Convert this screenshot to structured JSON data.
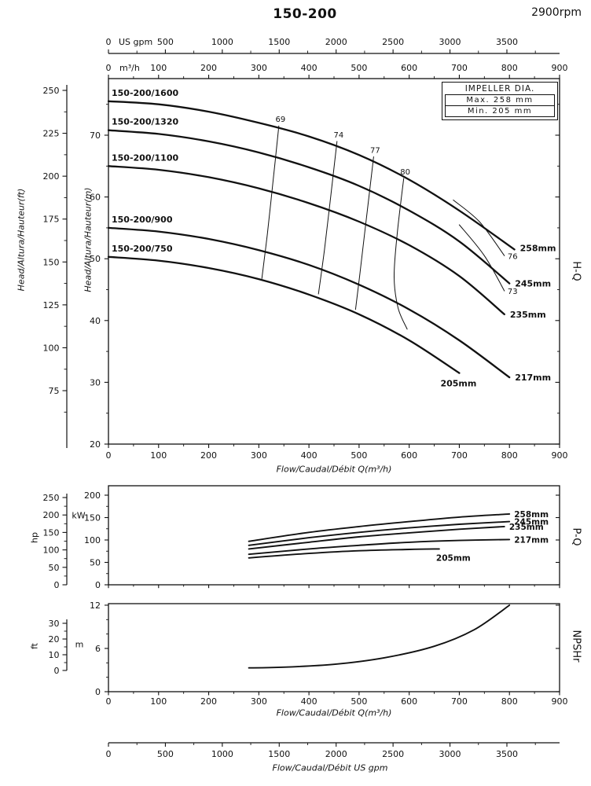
{
  "header": {
    "title": "150-200",
    "rpm": "2900rpm"
  },
  "impeller_box": {
    "title": "IMPELLER DIA.",
    "max": "Max.  258 mm",
    "min": "Min.  205 mm"
  },
  "side_labels": {
    "hq": "H-Q",
    "pq": "P-Q",
    "npshr": "NPSHr"
  },
  "axis_titles": {
    "head_ft": "Head/Altura/Hauteur(ft)",
    "head_m": "Head/Altura/Hauteur(m)",
    "flow_main": "Flow/Caudal/Débit Q(m³/h)",
    "flow_npsh": "Flow/Caudal/Débit Q(m³/h)",
    "flow_gpm": "Flow/Caudal/Débit  US gpm",
    "hp": "hp",
    "kw": "kW",
    "ft": "ft",
    "m": "m",
    "m3h_unit": "m³/h",
    "usgpm_unit": "US gpm"
  },
  "chart_data": [
    {
      "type": "line",
      "name": "H-Q",
      "title": "150-200 head vs flow",
      "xlabel": "Flow/Caudal/Débit Q(m³/h)",
      "ylabel": "Head/Altura/Hauteur(m)",
      "xlim": [
        0,
        900
      ],
      "ylim": [
        20,
        79
      ],
      "x_ticks": [
        0,
        100,
        200,
        300,
        400,
        500,
        600,
        700,
        800,
        900
      ],
      "x_minor_step": 50,
      "y_ticks_m": [
        20,
        30,
        40,
        50,
        60,
        70
      ],
      "y_minor_step_m": 5,
      "y_ticks_ft": [
        75,
        100,
        125,
        150,
        175,
        200,
        225,
        250
      ],
      "gpm_ticks": [
        0,
        500,
        1000,
        1500,
        2000,
        2500,
        3000,
        3500
      ],
      "gpm_minor_step": 250,
      "series": [
        {
          "model": "150-200/1600",
          "impeller": "258mm",
          "points": [
            [
              0,
              75.5
            ],
            [
              100,
              75
            ],
            [
              200,
              73.8
            ],
            [
              300,
              72
            ],
            [
              400,
              69.8
            ],
            [
              500,
              66.8
            ],
            [
              600,
              62.8
            ],
            [
              700,
              57.8
            ],
            [
              810,
              51.5
            ]
          ],
          "impeller_label_offset": [
            7,
            2
          ]
        },
        {
          "model": "150-200/1320",
          "impeller": "245mm",
          "points": [
            [
              0,
              70.8
            ],
            [
              100,
              70.2
            ],
            [
              200,
              69
            ],
            [
              300,
              67.2
            ],
            [
              400,
              64.8
            ],
            [
              500,
              61.8
            ],
            [
              600,
              57.8
            ],
            [
              700,
              52.8
            ],
            [
              800,
              46
            ]
          ]
        },
        {
          "model": "150-200/1100",
          "impeller": "235mm",
          "points": [
            [
              0,
              65
            ],
            [
              100,
              64.4
            ],
            [
              200,
              63.2
            ],
            [
              300,
              61.4
            ],
            [
              400,
              59
            ],
            [
              500,
              56
            ],
            [
              600,
              52.2
            ],
            [
              700,
              47.2
            ],
            [
              790,
              41
            ]
          ]
        },
        {
          "model": "150-200/900",
          "impeller": "217mm",
          "points": [
            [
              0,
              55
            ],
            [
              100,
              54.4
            ],
            [
              200,
              53.2
            ],
            [
              300,
              51.4
            ],
            [
              400,
              49
            ],
            [
              500,
              45.8
            ],
            [
              600,
              41.8
            ],
            [
              700,
              36.8
            ],
            [
              800,
              30.8
            ]
          ]
        },
        {
          "model": "150-200/750",
          "impeller": "205mm",
          "points": [
            [
              0,
              50.3
            ],
            [
              100,
              49.7
            ],
            [
              200,
              48.5
            ],
            [
              300,
              46.7
            ],
            [
              400,
              44.2
            ],
            [
              500,
              41
            ],
            [
              600,
              36.8
            ],
            [
              700,
              31.5
            ]
          ],
          "impeller_label_offset": [
            -24,
            17
          ]
        }
      ],
      "efficiency": [
        {
          "label": "69",
          "label_at": "start",
          "points": [
            [
              340,
              71.5
            ],
            [
              329,
              63
            ],
            [
              317,
              54
            ],
            [
              306,
              46.8
            ]
          ]
        },
        {
          "label": "74",
          "label_at": "start",
          "points": [
            [
              456,
              69
            ],
            [
              444,
              60.5
            ],
            [
              431,
              51.5
            ],
            [
              419,
              44.3
            ]
          ]
        },
        {
          "label": "77",
          "label_at": "start",
          "points": [
            [
              529,
              66.5
            ],
            [
              516,
              57.5
            ],
            [
              503,
              48.5
            ],
            [
              493,
              41.8
            ]
          ]
        },
        {
          "label": "80",
          "label_at": "start",
          "points": [
            [
              589,
              63
            ],
            [
              576,
              54
            ],
            [
              570,
              47
            ],
            [
              578,
              42
            ],
            [
              596,
              38.6
            ]
          ]
        },
        {
          "label": "76",
          "label_at": "end",
          "points": [
            [
              688,
              59.5
            ],
            [
              740,
              56
            ],
            [
              790,
              50.5
            ]
          ]
        },
        {
          "label": "73",
          "label_at": "end",
          "points": [
            [
              700,
              55.5
            ],
            [
              750,
              50.5
            ],
            [
              790,
              44.8
            ]
          ]
        }
      ]
    },
    {
      "type": "line",
      "name": "P-Q",
      "ylabel_kw": "kW",
      "ylabel_hp": "hp",
      "ylim_kw": [
        0,
        217
      ],
      "kw_ticks": [
        0,
        50,
        100,
        150,
        200
      ],
      "kw_minor_step": 25,
      "hp_ticks": [
        0,
        50,
        100,
        150,
        200,
        250
      ],
      "hp_minor_step": 25,
      "series": [
        {
          "impeller": "258mm",
          "points": [
            [
              280,
              97
            ],
            [
              400,
              117
            ],
            [
              500,
              130
            ],
            [
              600,
              141
            ],
            [
              700,
              151
            ],
            [
              800,
              158
            ]
          ]
        },
        {
          "impeller": "245mm",
          "points": [
            [
              280,
              88
            ],
            [
              400,
              105
            ],
            [
              500,
              117
            ],
            [
              600,
              127
            ],
            [
              700,
              135
            ],
            [
              800,
              141
            ]
          ]
        },
        {
          "impeller": "235mm",
          "points": [
            [
              280,
              80
            ],
            [
              400,
              95
            ],
            [
              500,
              107
            ],
            [
              600,
              116
            ],
            [
              700,
              124
            ],
            [
              790,
              130
            ]
          ]
        },
        {
          "impeller": "217mm",
          "points": [
            [
              280,
              68
            ],
            [
              400,
              80
            ],
            [
              500,
              88
            ],
            [
              600,
              95
            ],
            [
              700,
              99
            ],
            [
              800,
              101
            ]
          ]
        },
        {
          "impeller": "205mm",
          "points": [
            [
              280,
              60
            ],
            [
              400,
              70
            ],
            [
              500,
              76
            ],
            [
              600,
              79
            ],
            [
              660,
              80
            ]
          ],
          "impeller_label_offset": [
            -4,
            15
          ]
        }
      ]
    },
    {
      "type": "line",
      "name": "NPSHr",
      "xlabel": "Flow/Caudal/Débit Q(m³/h)",
      "x_ticks": [
        0,
        100,
        200,
        300,
        400,
        500,
        600,
        700,
        800,
        900
      ],
      "x_minor_step": 50,
      "ylim_m": [
        0,
        12.2
      ],
      "m_ticks": [
        0,
        6,
        12
      ],
      "m_minor_step": 2,
      "ft_ticks": [
        0,
        10,
        20,
        30
      ],
      "ft_minor_step": 5,
      "series": [
        {
          "name": "NPSHr",
          "points": [
            [
              280,
              3.3
            ],
            [
              350,
              3.4
            ],
            [
              450,
              3.8
            ],
            [
              550,
              4.7
            ],
            [
              650,
              6.3
            ],
            [
              730,
              8.6
            ],
            [
              800,
              12
            ]
          ]
        }
      ]
    }
  ],
  "bottom_axis": {
    "ticks": [
      0,
      500,
      1000,
      1500,
      2000,
      2500,
      3000,
      3500
    ],
    "minor_step": 250,
    "label": "Flow/Caudal/Débit  US gpm"
  }
}
